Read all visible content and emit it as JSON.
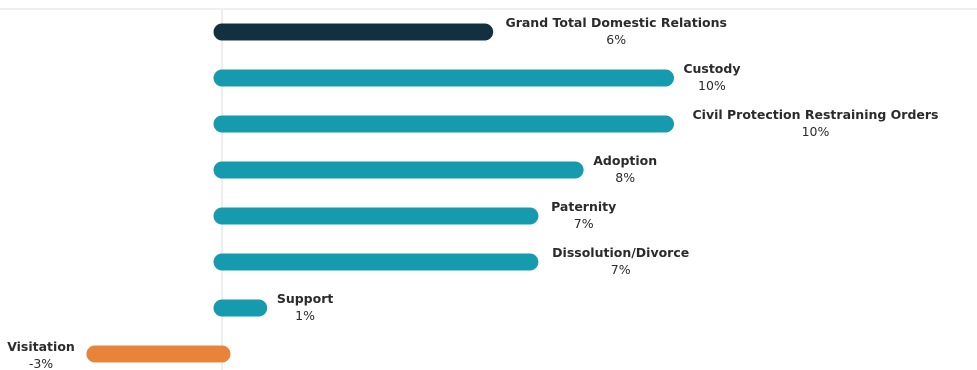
{
  "chart_data": {
    "type": "bar",
    "orientation": "horizontal",
    "title": "",
    "xlabel": "",
    "ylabel": "",
    "grid": false,
    "legend": "none",
    "categories": [
      "Grand Total Domestic Relations",
      "Custody",
      "Civil Protection Restraining Orders",
      "Adoption",
      "Paternity",
      "Dissolution/Divorce",
      "Support",
      "Visitation"
    ],
    "values": [
      6,
      10,
      10,
      8,
      7,
      7,
      1,
      -3
    ],
    "value_labels": [
      "6%",
      "10%",
      "10%",
      "8%",
      "7%",
      "7%",
      "1%",
      "-3%"
    ],
    "colors": {
      "total": "#12303f",
      "positive": "#169aad",
      "negative": "#e8843a",
      "zero_line": "#dcdcdc",
      "top_border": "#e2e2e2"
    }
  }
}
